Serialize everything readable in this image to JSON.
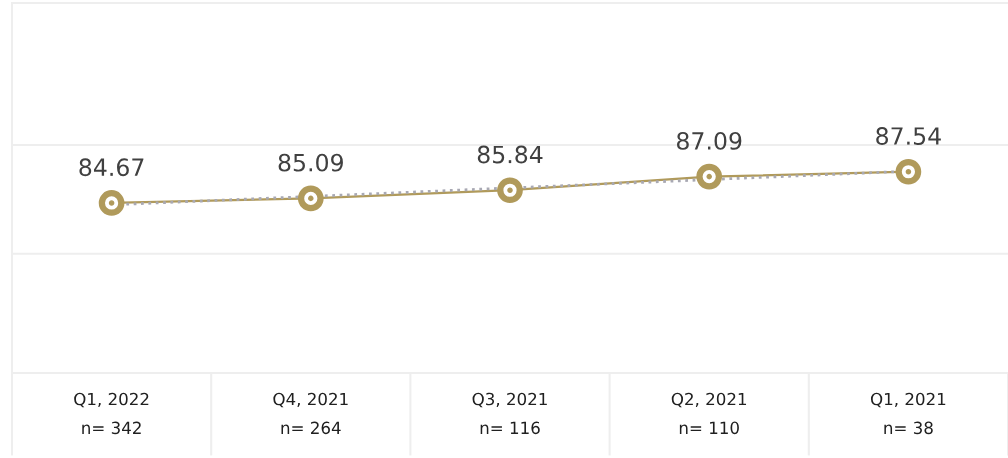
{
  "chart_data": {
    "type": "line",
    "categories": [
      "Q1, 2022\nn= 342",
      "Q4, 2021\nn= 264",
      "Q3, 2021\nn= 116",
      "Q2, 2021\nn= 110",
      "Q1, 2021\nn= 38"
    ],
    "series": [
      {
        "color": "#b09a5b",
        "values": [
          84.67,
          85.09,
          85.84,
          87.09,
          87.54
        ],
        "marker": "circle",
        "line_style": "solid",
        "data_labels": true
      },
      {
        "type": "line",
        "color": "#a9a9b3",
        "values": [
          84.5,
          85.27,
          86.05,
          86.82,
          87.59
        ],
        "marker": "none",
        "line_style": "dotted"
      }
    ],
    "ref_lines": [
      {
        "axis": "y",
        "value": 80,
        "color": "#eeeeee"
      },
      {
        "axis": "y",
        "value": 90,
        "color": "#eeeeee"
      }
    ],
    "tick_labels": "x",
    "legend": false
  }
}
